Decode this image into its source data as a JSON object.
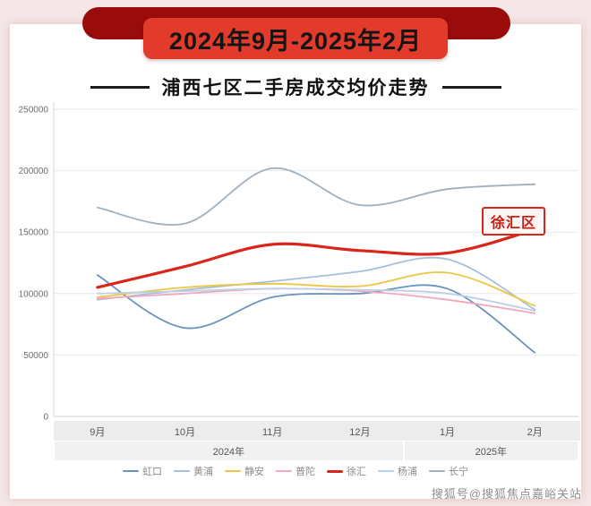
{
  "banner": {
    "title": "2024年9月-2025年2月"
  },
  "subtitle": "浦西七区二手房成交均价走势",
  "annotation": {
    "label": "徐汇区",
    "color": "#d9261c"
  },
  "watermark": "搜狐号@搜狐焦点嘉峪关站",
  "chart_data": {
    "type": "line",
    "title": "浦西七区二手房成交均价走势",
    "categories": [
      "9月",
      "10月",
      "11月",
      "12月",
      "1月",
      "2月"
    ],
    "year_groups": [
      {
        "label": "2024年",
        "from": 0,
        "to": 3
      },
      {
        "label": "2025年",
        "from": 4,
        "to": 5
      }
    ],
    "ylim": [
      0,
      250000
    ],
    "ytick_step": 50000,
    "yticks": [
      0,
      50000,
      100000,
      150000,
      200000,
      250000
    ],
    "grid": true,
    "legend_position": "bottom",
    "series": [
      {
        "name": "虹口",
        "color": "#6b93bf",
        "width": 1.8,
        "values": [
          115000,
          72000,
          97000,
          100000,
          104000,
          52000
        ]
      },
      {
        "name": "黄浦",
        "color": "#a6bfd8",
        "width": 1.8,
        "values": [
          95000,
          103000,
          110000,
          118000,
          128000,
          87000
        ]
      },
      {
        "name": "静安",
        "color": "#eec643",
        "width": 1.8,
        "values": [
          97000,
          105000,
          108000,
          106000,
          117000,
          90000
        ]
      },
      {
        "name": "普陀",
        "color": "#f2a8bc",
        "width": 1.8,
        "values": [
          96000,
          100000,
          104000,
          102000,
          95000,
          84000
        ]
      },
      {
        "name": "徐汇",
        "color": "#d9261c",
        "width": 3.2,
        "values": [
          105000,
          122000,
          140000,
          135000,
          133000,
          152000
        ]
      },
      {
        "name": "杨浦",
        "color": "#bcd0e5",
        "width": 1.8,
        "values": [
          100000,
          102000,
          104000,
          103000,
          100000,
          86000
        ]
      },
      {
        "name": "长宁",
        "color": "#9fb0bf",
        "width": 1.8,
        "values": [
          170000,
          157000,
          202000,
          172000,
          185000,
          189000
        ]
      }
    ]
  }
}
